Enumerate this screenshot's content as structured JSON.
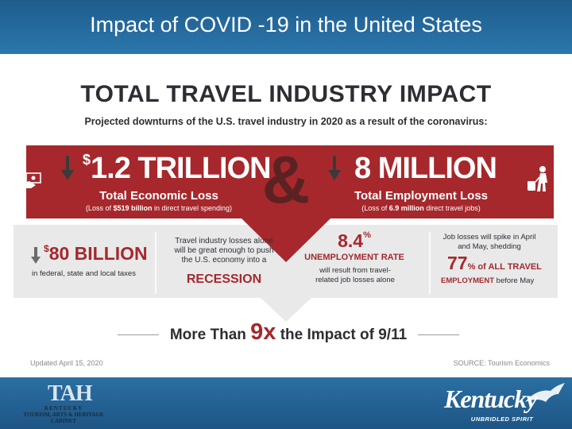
{
  "header": {
    "title": "Impact of COVID -19 in the United States"
  },
  "infographic": {
    "title": "TOTAL TRAVEL INDUSTRY IMPACT",
    "subtitle": "Projected downturns of the U.S. travel industry in 2020 as a result of the coronavirus:",
    "economic": {
      "dollar": "$",
      "amount": "1.2 TRILLION",
      "label": "Total Economic Loss",
      "note_prefix": "(Loss of ",
      "note_bold": "$519 billion",
      "note_suffix": " in direct travel spending)"
    },
    "ampersand": "&",
    "employment": {
      "amount": "8 MILLION",
      "label": "Total Employment Loss",
      "note_prefix": "(Loss of ",
      "note_bold": "6.9 million",
      "note_suffix": " direct travel jobs)"
    },
    "taxes": {
      "dollar": "$",
      "amount": "80 BILLION",
      "detail": "in federal, state and local taxes"
    },
    "recession": {
      "text": "Travel industry losses alone will be great enough to push the U.S. economy into a",
      "highlight": "RECESSION"
    },
    "unemployment": {
      "value": "8.4",
      "unit": "%",
      "label": "UNEMPLOYMENT RATE",
      "detail": "will result from travel-related job losses alone"
    },
    "jobs": {
      "intro": "Job losses will spike in April and May, shedding",
      "value": "77",
      "unit": "% of ALL TRAVEL",
      "label": "EMPLOYMENT",
      "suffix": " before May"
    },
    "comparison": {
      "prefix": "More Than ",
      "multiplier": "9x",
      "suffix": " the Impact of 9/11"
    },
    "updated": "Updated April 15, 2020",
    "source": "SOURCE: Tourism Economics"
  },
  "footer": {
    "left_logo": {
      "mark": "TAH",
      "line1": "KENTUCKY",
      "line2": "TOURISM, ARTS & HERITAGE",
      "line3": "CABINET"
    },
    "right_logo": {
      "name": "Kentucky",
      "tagline": "UNBRIDLED SPIRIT"
    }
  },
  "colors": {
    "accent_red": "#a6282c",
    "header_blue": "#2b77ad",
    "panel_gray": "#e9e9ea"
  }
}
